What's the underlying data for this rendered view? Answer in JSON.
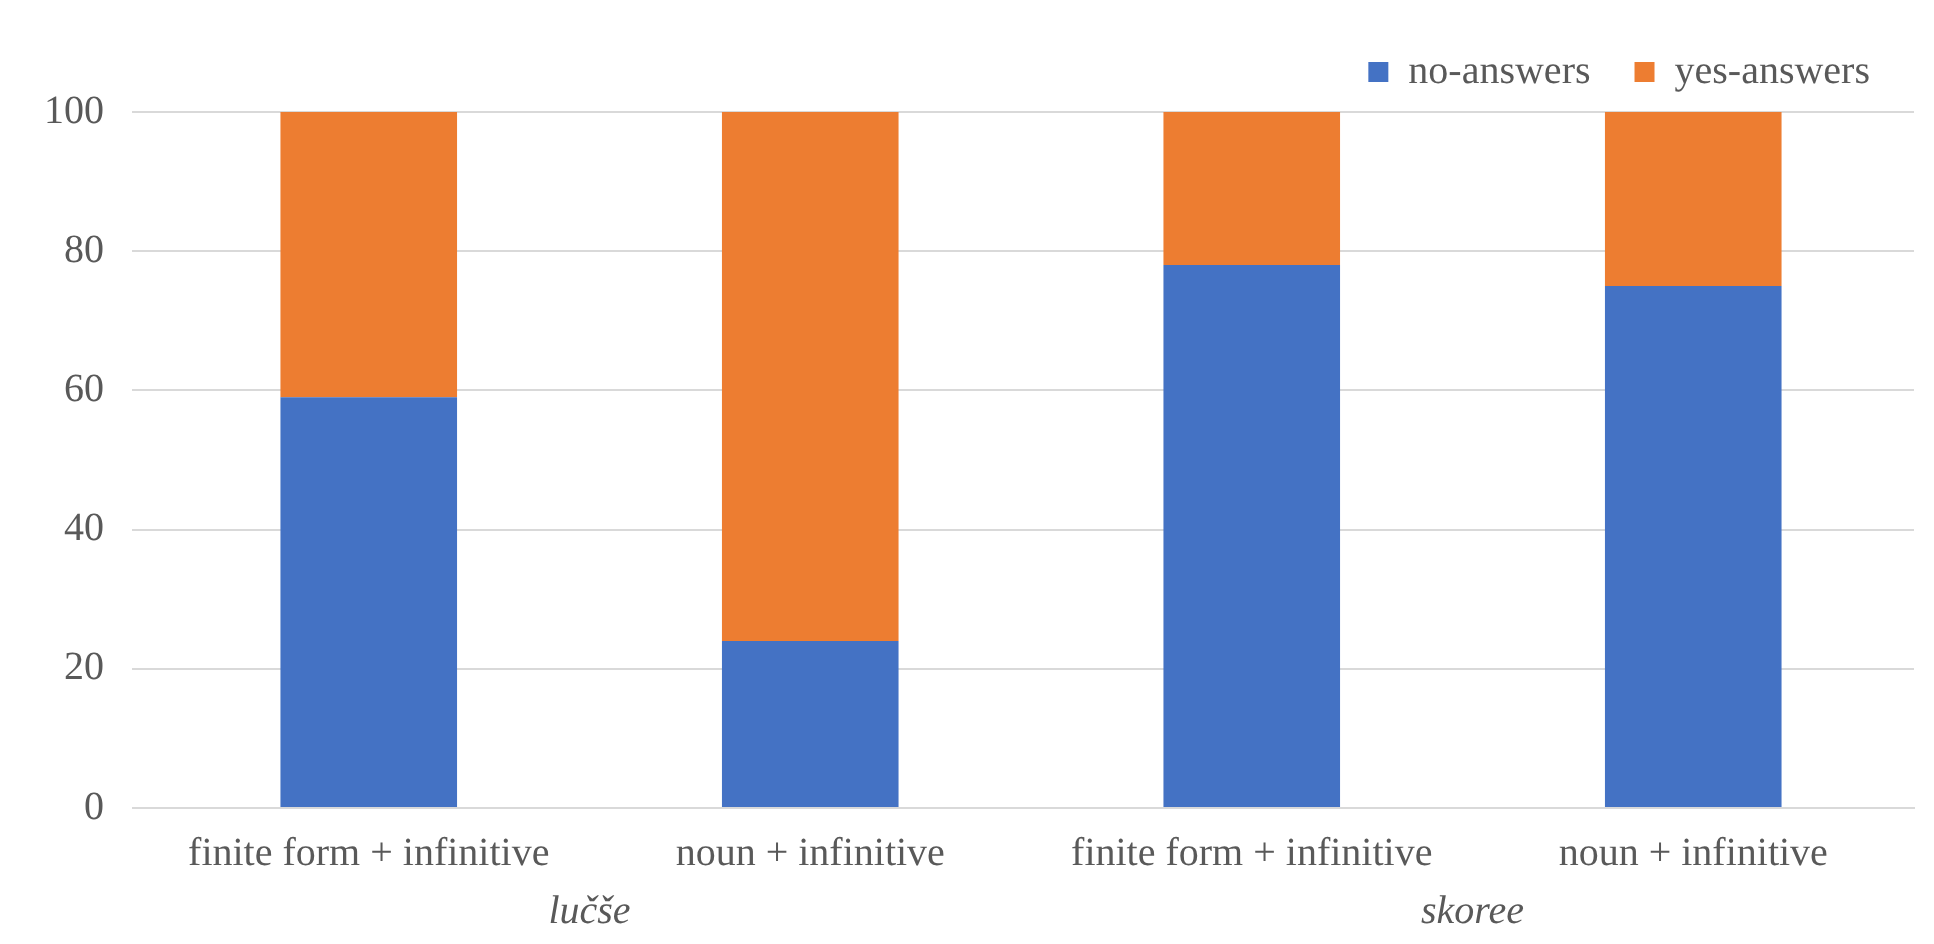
{
  "chart_data": {
    "type": "bar",
    "stacked": true,
    "categories": [
      "finite form + infinitive",
      "noun + infinitive",
      "finite form + infinitive",
      "noun + infinitive"
    ],
    "series": [
      {
        "name": "no-answers",
        "color": "#4472c4",
        "values": [
          59,
          24,
          78,
          75
        ]
      },
      {
        "name": "yes-answers",
        "color": "#ed7d31",
        "values": [
          41,
          76,
          22,
          25
        ]
      }
    ],
    "ylim": [
      0,
      100
    ],
    "yticks": [
      0,
      20,
      40,
      60,
      80,
      100
    ],
    "grid": "y",
    "legend": "top right",
    "annotations": [
      "lučše",
      "skoree"
    ]
  }
}
